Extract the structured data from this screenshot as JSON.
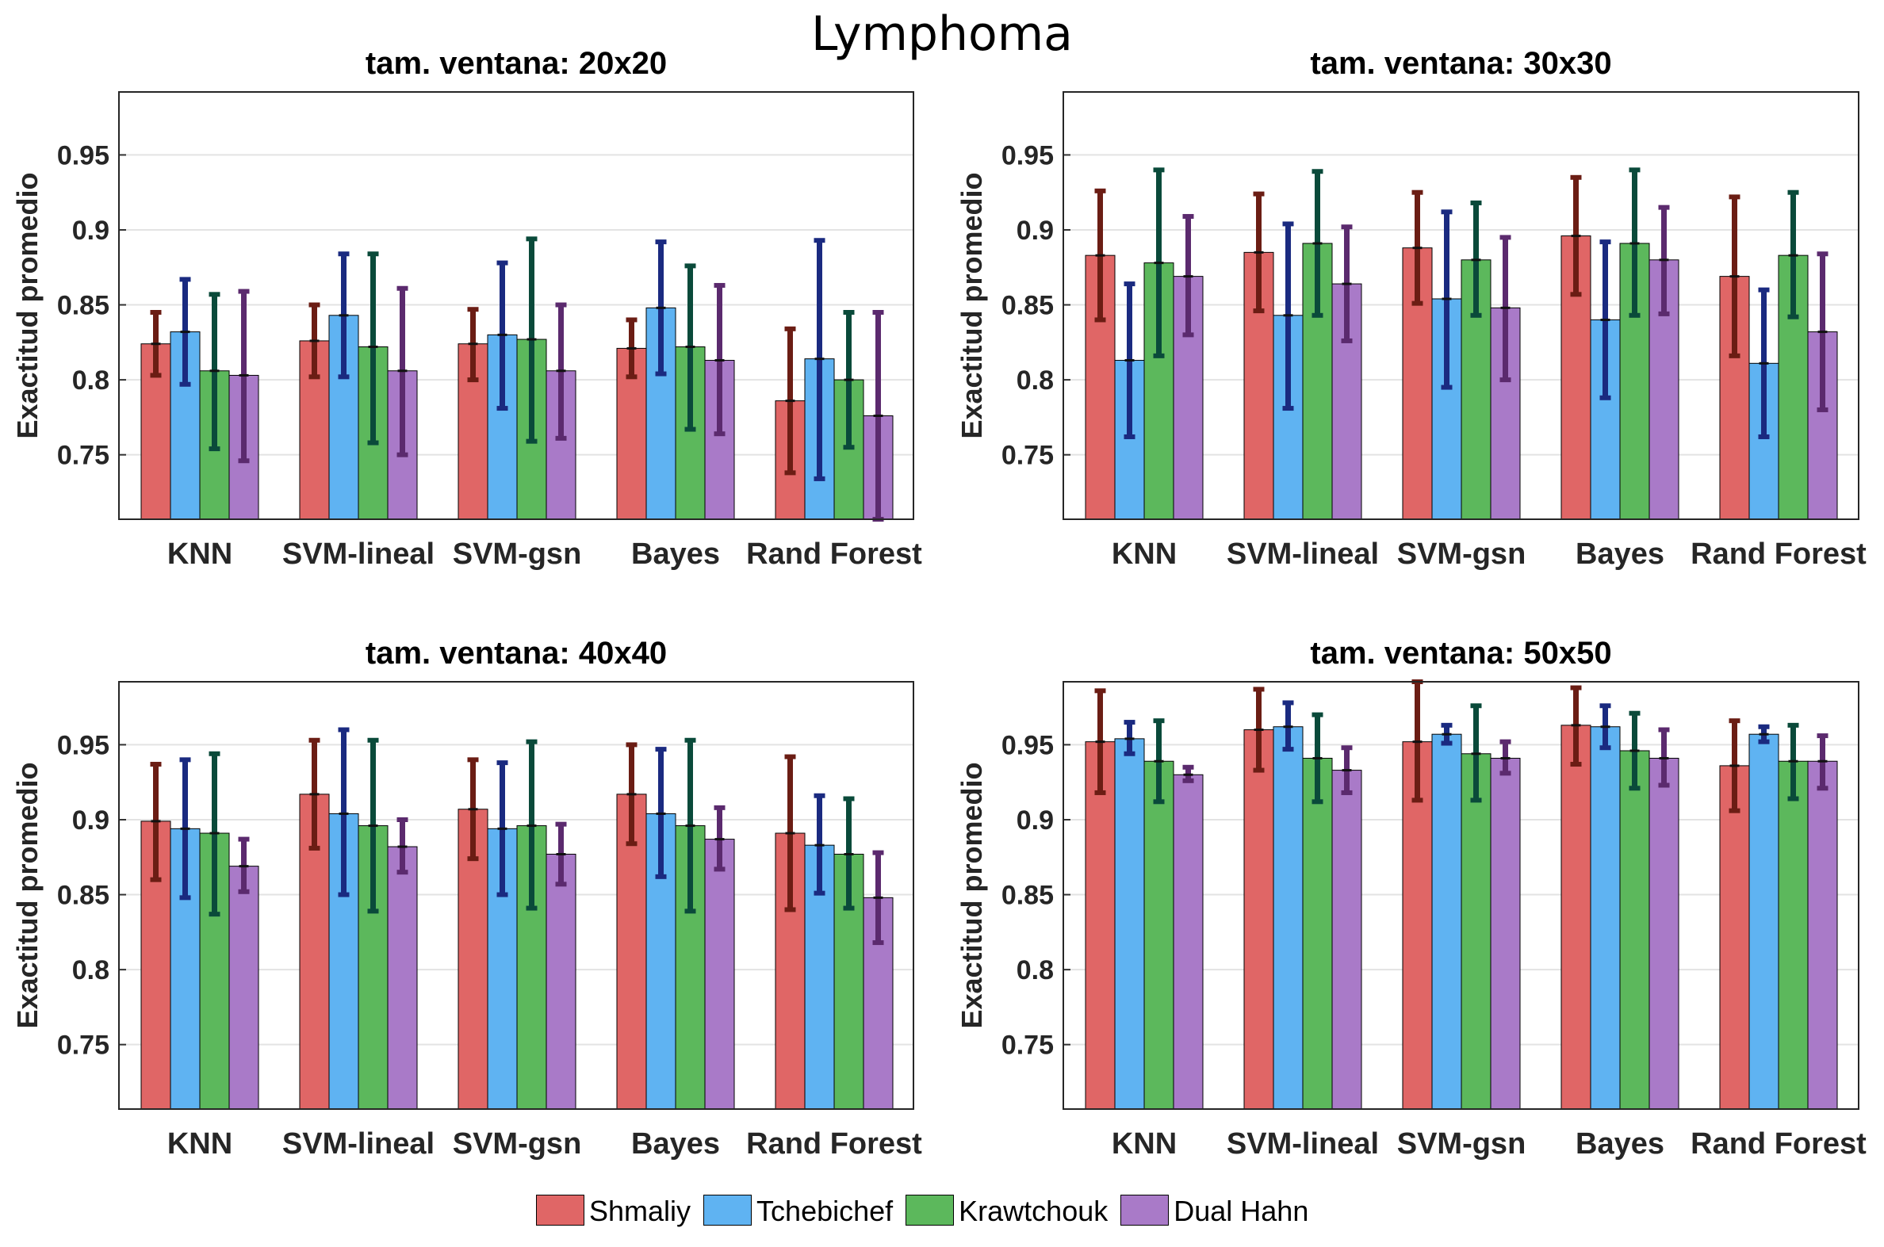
{
  "figure": {
    "title": "Lymphoma"
  },
  "legend": [
    {
      "label": "Shmaliy",
      "color": "#e06666"
    },
    {
      "label": "Tchebichef",
      "color": "#5fb3f2"
    },
    {
      "label": "Krawtchouk",
      "color": "#5cb85c"
    },
    {
      "label": "Dual Hahn",
      "color": "#a97ac8"
    }
  ],
  "error_colors": [
    "#6b1d14",
    "#1a2a80",
    "#0a4a3a",
    "#5b2a6e"
  ],
  "chart_data": [
    {
      "type": "bar",
      "title": "tam. ventana: 20x20",
      "ylabel": "Exactitud promedio",
      "xlabel": "",
      "ylim": [
        0.707,
        0.992
      ],
      "yticks": [
        "0.75",
        "0.8",
        "0.85",
        "0.9",
        "0.95"
      ],
      "grid": true,
      "categories": [
        "KNN",
        "SVM-lineal",
        "SVM-gsn",
        "Bayes",
        "Rand Forest"
      ],
      "series": [
        {
          "name": "Shmaliy",
          "values": [
            0.824,
            0.826,
            0.824,
            0.821,
            0.786
          ],
          "err_low": [
            0.803,
            0.802,
            0.8,
            0.802,
            0.738
          ],
          "err_high": [
            0.845,
            0.85,
            0.847,
            0.84,
            0.834
          ]
        },
        {
          "name": "Tchebichef",
          "values": [
            0.832,
            0.843,
            0.83,
            0.848,
            0.814
          ],
          "err_low": [
            0.797,
            0.802,
            0.781,
            0.804,
            0.734
          ],
          "err_high": [
            0.867,
            0.884,
            0.878,
            0.892,
            0.893
          ]
        },
        {
          "name": "Krawtchouk",
          "values": [
            0.806,
            0.822,
            0.827,
            0.822,
            0.8
          ],
          "err_low": [
            0.754,
            0.758,
            0.759,
            0.767,
            0.755
          ],
          "err_high": [
            0.857,
            0.884,
            0.894,
            0.876,
            0.845
          ]
        },
        {
          "name": "Dual Hahn",
          "values": [
            0.803,
            0.806,
            0.806,
            0.813,
            0.776
          ],
          "err_low": [
            0.746,
            0.75,
            0.761,
            0.764,
            0.707
          ],
          "err_high": [
            0.859,
            0.861,
            0.85,
            0.863,
            0.845
          ]
        }
      ]
    },
    {
      "type": "bar",
      "title": "tam. ventana: 30x30",
      "ylabel": "Exactitud promedio",
      "xlabel": "",
      "ylim": [
        0.707,
        0.992
      ],
      "yticks": [
        "0.75",
        "0.8",
        "0.85",
        "0.9",
        "0.95"
      ],
      "grid": true,
      "categories": [
        "KNN",
        "SVM-lineal",
        "SVM-gsn",
        "Bayes",
        "Rand Forest"
      ],
      "series": [
        {
          "name": "Shmaliy",
          "values": [
            0.883,
            0.885,
            0.888,
            0.896,
            0.869
          ],
          "err_low": [
            0.84,
            0.846,
            0.851,
            0.857,
            0.816
          ],
          "err_high": [
            0.926,
            0.924,
            0.925,
            0.935,
            0.922
          ]
        },
        {
          "name": "Tchebichef",
          "values": [
            0.813,
            0.843,
            0.854,
            0.84,
            0.811
          ],
          "err_low": [
            0.762,
            0.781,
            0.795,
            0.788,
            0.762
          ],
          "err_high": [
            0.864,
            0.904,
            0.912,
            0.892,
            0.86
          ]
        },
        {
          "name": "Krawtchouk",
          "values": [
            0.878,
            0.891,
            0.88,
            0.891,
            0.883
          ],
          "err_low": [
            0.816,
            0.843,
            0.843,
            0.843,
            0.842
          ],
          "err_high": [
            0.94,
            0.939,
            0.918,
            0.94,
            0.925
          ]
        },
        {
          "name": "Dual Hahn",
          "values": [
            0.869,
            0.864,
            0.848,
            0.88,
            0.832
          ],
          "err_low": [
            0.83,
            0.826,
            0.8,
            0.844,
            0.78
          ],
          "err_high": [
            0.909,
            0.902,
            0.895,
            0.915,
            0.884
          ]
        }
      ]
    },
    {
      "type": "bar",
      "title": "tam. ventana: 40x40",
      "ylabel": "Exactitud promedio",
      "xlabel": "",
      "ylim": [
        0.707,
        0.992
      ],
      "yticks": [
        "0.75",
        "0.8",
        "0.85",
        "0.9",
        "0.95"
      ],
      "grid": true,
      "categories": [
        "KNN",
        "SVM-lineal",
        "SVM-gsn",
        "Bayes",
        "Rand Forest"
      ],
      "series": [
        {
          "name": "Shmaliy",
          "values": [
            0.899,
            0.917,
            0.907,
            0.917,
            0.891
          ],
          "err_low": [
            0.86,
            0.881,
            0.874,
            0.884,
            0.84
          ],
          "err_high": [
            0.937,
            0.953,
            0.94,
            0.95,
            0.942
          ]
        },
        {
          "name": "Tchebichef",
          "values": [
            0.894,
            0.904,
            0.894,
            0.904,
            0.883
          ],
          "err_low": [
            0.848,
            0.85,
            0.85,
            0.862,
            0.851
          ],
          "err_high": [
            0.94,
            0.96,
            0.938,
            0.947,
            0.916
          ]
        },
        {
          "name": "Krawtchouk",
          "values": [
            0.891,
            0.896,
            0.896,
            0.896,
            0.877
          ],
          "err_low": [
            0.837,
            0.839,
            0.841,
            0.839,
            0.841
          ],
          "err_high": [
            0.944,
            0.953,
            0.952,
            0.953,
            0.914
          ]
        },
        {
          "name": "Dual Hahn",
          "values": [
            0.869,
            0.882,
            0.877,
            0.887,
            0.848
          ],
          "err_low": [
            0.852,
            0.865,
            0.857,
            0.867,
            0.818
          ],
          "err_high": [
            0.887,
            0.9,
            0.897,
            0.908,
            0.878
          ]
        }
      ]
    },
    {
      "type": "bar",
      "title": "tam. ventana: 50x50",
      "ylabel": "Exactitud promedio",
      "xlabel": "",
      "ylim": [
        0.707,
        0.992
      ],
      "yticks": [
        "0.75",
        "0.8",
        "0.85",
        "0.9",
        "0.95"
      ],
      "grid": true,
      "categories": [
        "KNN",
        "SVM-lineal",
        "SVM-gsn",
        "Bayes",
        "Rand Forest"
      ],
      "series": [
        {
          "name": "Shmaliy",
          "values": [
            0.952,
            0.96,
            0.952,
            0.963,
            0.936
          ],
          "err_low": [
            0.918,
            0.933,
            0.913,
            0.937,
            0.906
          ],
          "err_high": [
            0.986,
            0.987,
            0.992,
            0.988,
            0.966
          ]
        },
        {
          "name": "Tchebichef",
          "values": [
            0.954,
            0.962,
            0.957,
            0.962,
            0.957
          ],
          "err_low": [
            0.944,
            0.947,
            0.951,
            0.948,
            0.952
          ],
          "err_high": [
            0.965,
            0.978,
            0.963,
            0.976,
            0.962
          ]
        },
        {
          "name": "Krawtchouk",
          "values": [
            0.939,
            0.941,
            0.944,
            0.946,
            0.939
          ],
          "err_low": [
            0.912,
            0.912,
            0.913,
            0.921,
            0.914
          ],
          "err_high": [
            0.966,
            0.97,
            0.976,
            0.971,
            0.963
          ]
        },
        {
          "name": "Dual Hahn",
          "values": [
            0.93,
            0.933,
            0.941,
            0.941,
            0.939
          ],
          "err_low": [
            0.926,
            0.918,
            0.931,
            0.923,
            0.921
          ],
          "err_high": [
            0.935,
            0.948,
            0.952,
            0.96,
            0.956
          ]
        }
      ]
    }
  ]
}
